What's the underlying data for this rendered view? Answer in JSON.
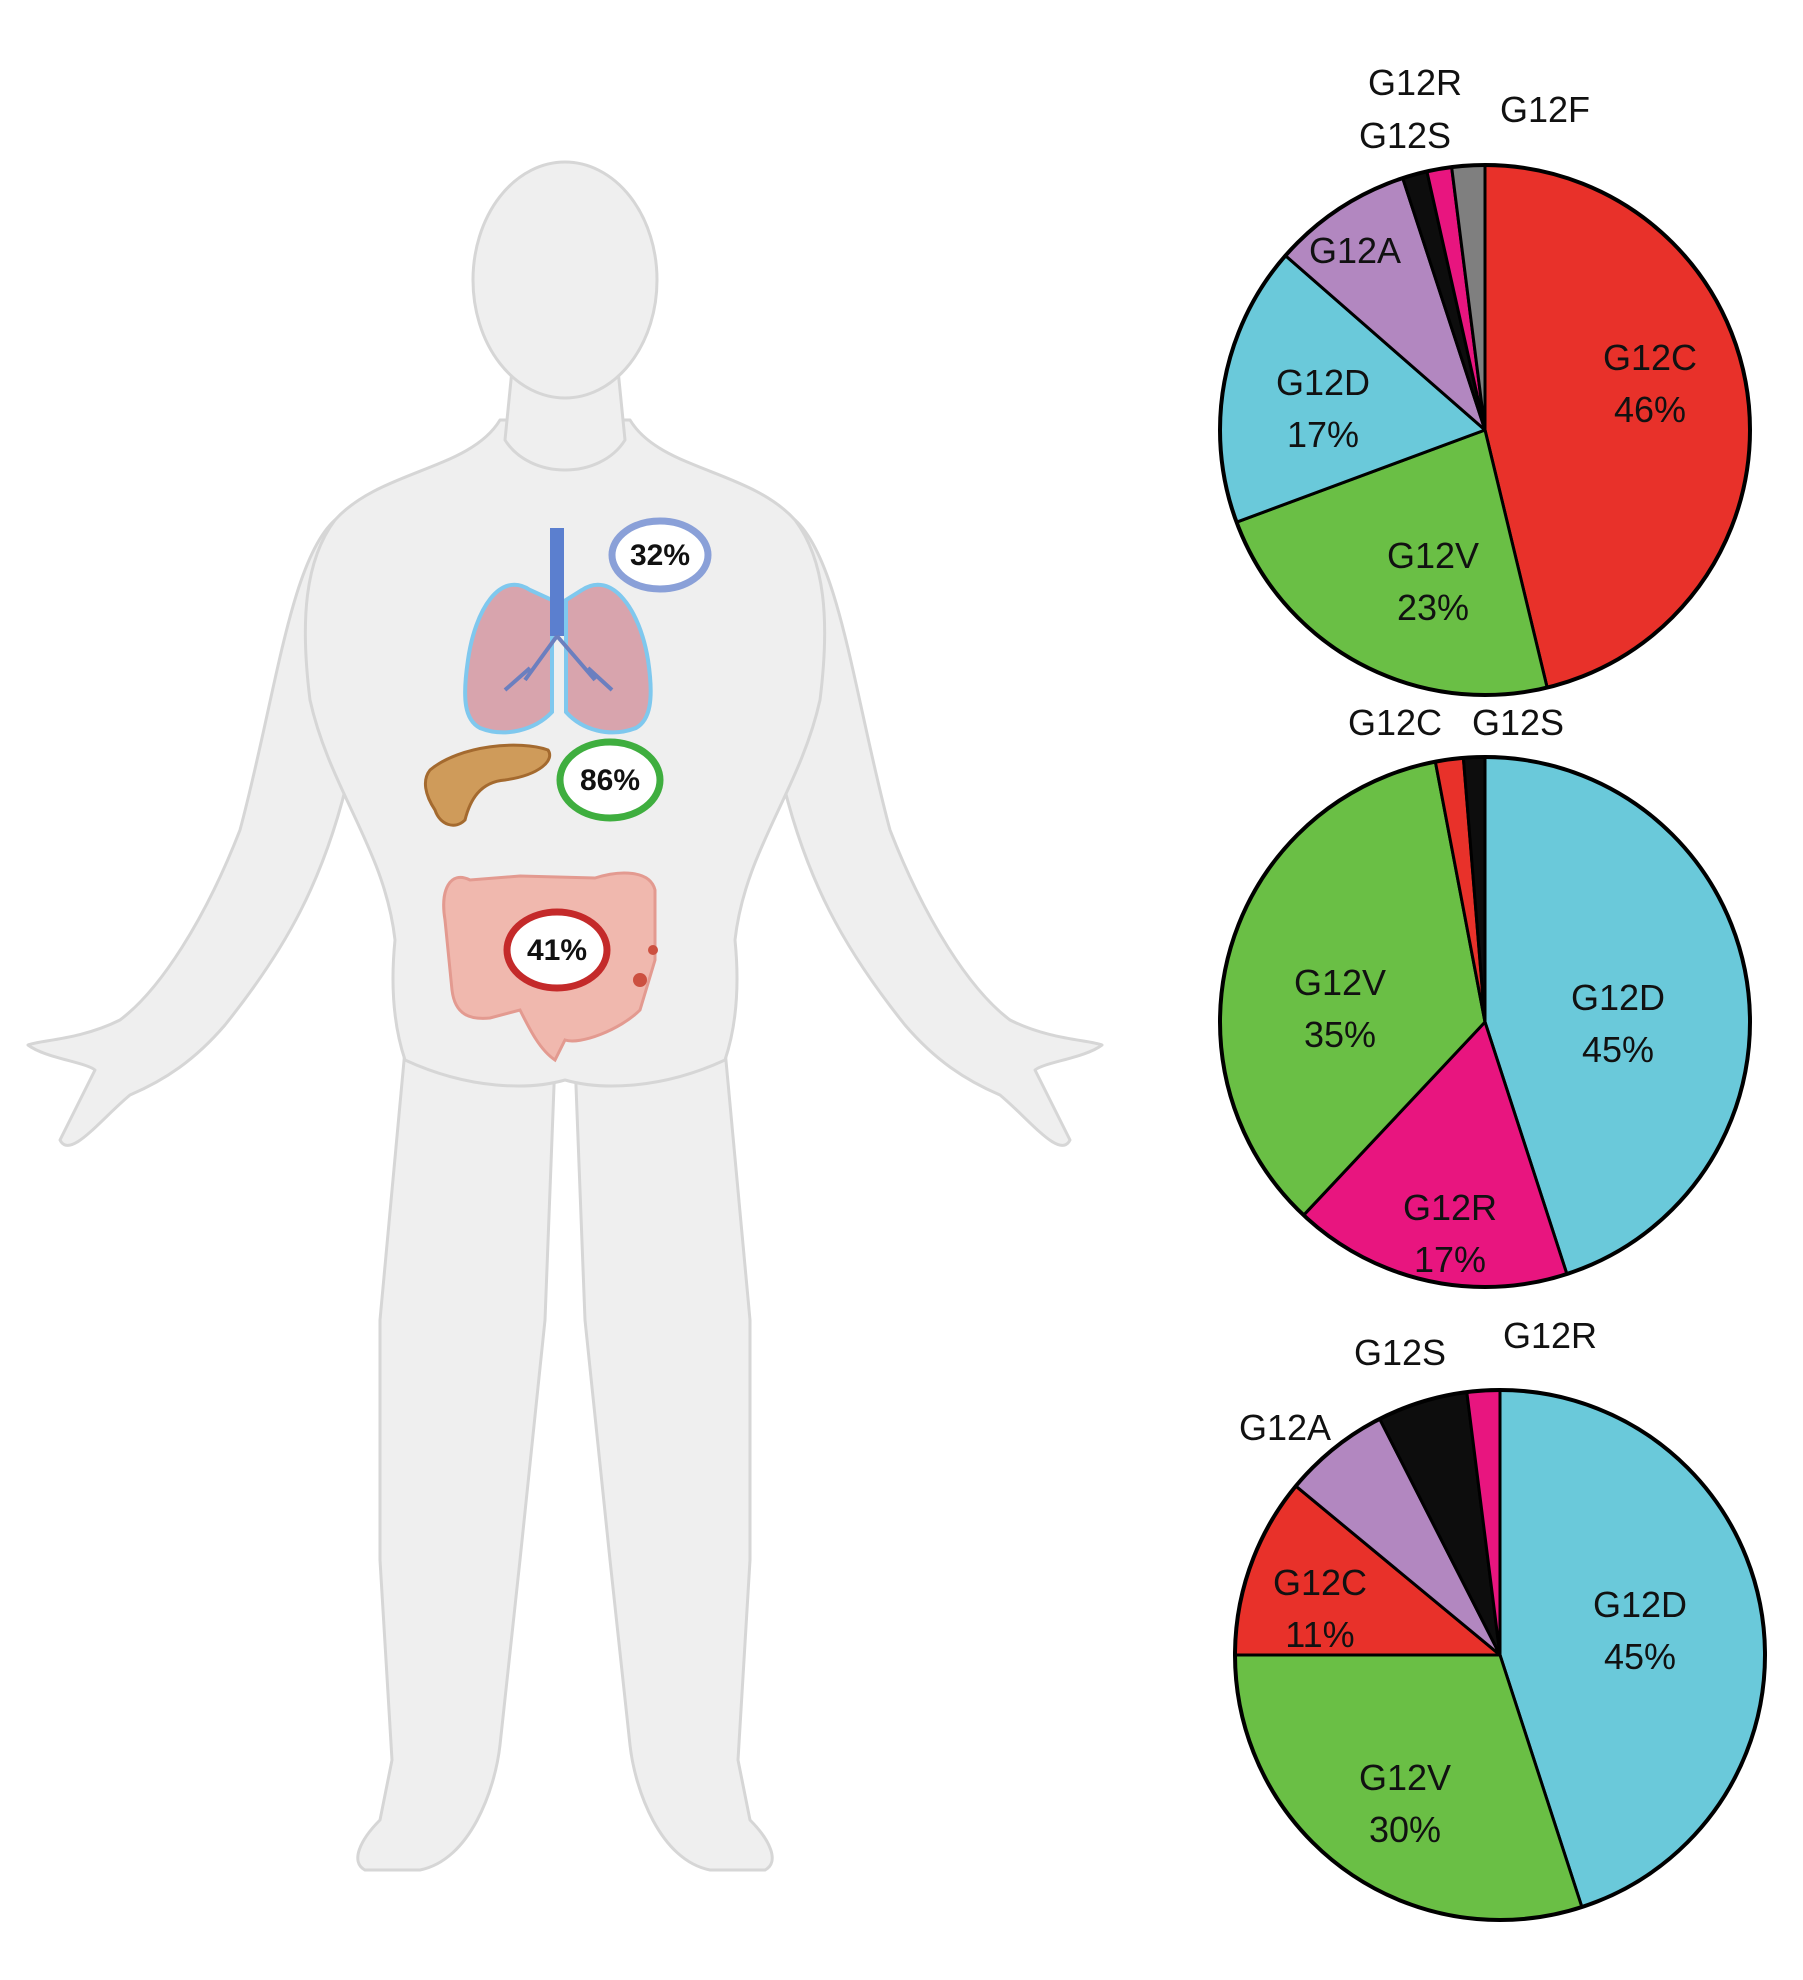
{
  "organ_badges": [
    {
      "organ": "lung",
      "label": "32%",
      "color": "#8aa0d8"
    },
    {
      "organ": "pancreas",
      "label": "86%",
      "color": "#3fae3f"
    },
    {
      "organ": "colon",
      "label": "41%",
      "color": "#c42a2a"
    }
  ],
  "chart_data": [
    {
      "type": "pie",
      "slices": [
        {
          "label": "G12C",
          "value": 46,
          "display": "46%",
          "color": "#e8312a"
        },
        {
          "label": "G12V",
          "value": 23,
          "display": "23%",
          "color": "#6abf45"
        },
        {
          "label": "G12D",
          "value": 17,
          "display": "17%",
          "color": "#6ac9da"
        },
        {
          "label": "G12A",
          "value": 8.5,
          "display": "",
          "color": "#b287c0"
        },
        {
          "label": "G12S",
          "value": 1.5,
          "display": "",
          "color": "#0d0d0d"
        },
        {
          "label": "G12R",
          "value": 1.5,
          "display": "",
          "color": "#e8157f"
        },
        {
          "label": "G12F",
          "value": 2,
          "display": "",
          "color": "#7f7f7f"
        }
      ]
    },
    {
      "type": "pie",
      "slices": [
        {
          "label": "G12D",
          "value": 45,
          "display": "45%",
          "color": "#6ac9da"
        },
        {
          "label": "G12R",
          "value": 17,
          "display": "17%",
          "color": "#e8157f"
        },
        {
          "label": "G12V",
          "value": 35,
          "display": "35%",
          "color": "#6abf45"
        },
        {
          "label": "G12C",
          "value": 1.7,
          "display": "",
          "color": "#e8312a"
        },
        {
          "label": "G12S",
          "value": 1.3,
          "display": "",
          "color": "#0d0d0d"
        }
      ]
    },
    {
      "type": "pie",
      "slices": [
        {
          "label": "G12D",
          "value": 45,
          "display": "45%",
          "color": "#6ac9da"
        },
        {
          "label": "G12V",
          "value": 30,
          "display": "30%",
          "color": "#6abf45"
        },
        {
          "label": "G12C",
          "value": 11,
          "display": "11%",
          "color": "#e8312a"
        },
        {
          "label": "G12A",
          "value": 6.5,
          "display": "",
          "color": "#b287c0"
        },
        {
          "label": "G12S",
          "value": 5.5,
          "display": "",
          "color": "#0d0d0d"
        },
        {
          "label": "G12R",
          "value": 2,
          "display": "",
          "color": "#e8157f"
        }
      ]
    }
  ]
}
